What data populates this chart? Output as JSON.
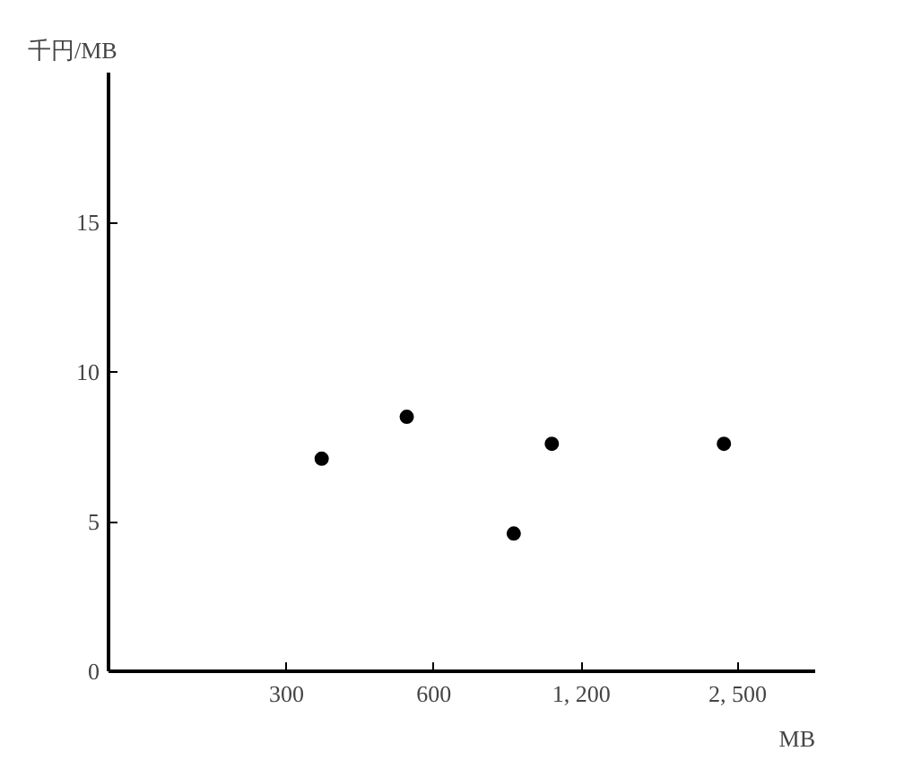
{
  "chart_data": {
    "type": "scatter",
    "ylabel": "千円/MB",
    "xlabel": "MB",
    "log": "x",
    "xlim": [
      130,
      3600
    ],
    "ylim": [
      0,
      20
    ],
    "xticks": [
      300,
      600,
      {
        "value": 1200,
        "label": "1, 200"
      },
      {
        "value": 2500,
        "label": "2, 500"
      }
    ],
    "yticks": [
      0,
      5,
      10,
      15
    ],
    "grid": false,
    "marker": "circle",
    "x": [
      354,
      528,
      873,
      1044,
      2344
    ],
    "values": [
      7.1,
      8.5,
      4.6,
      7.6,
      7.6
    ],
    "color": "#000000"
  }
}
